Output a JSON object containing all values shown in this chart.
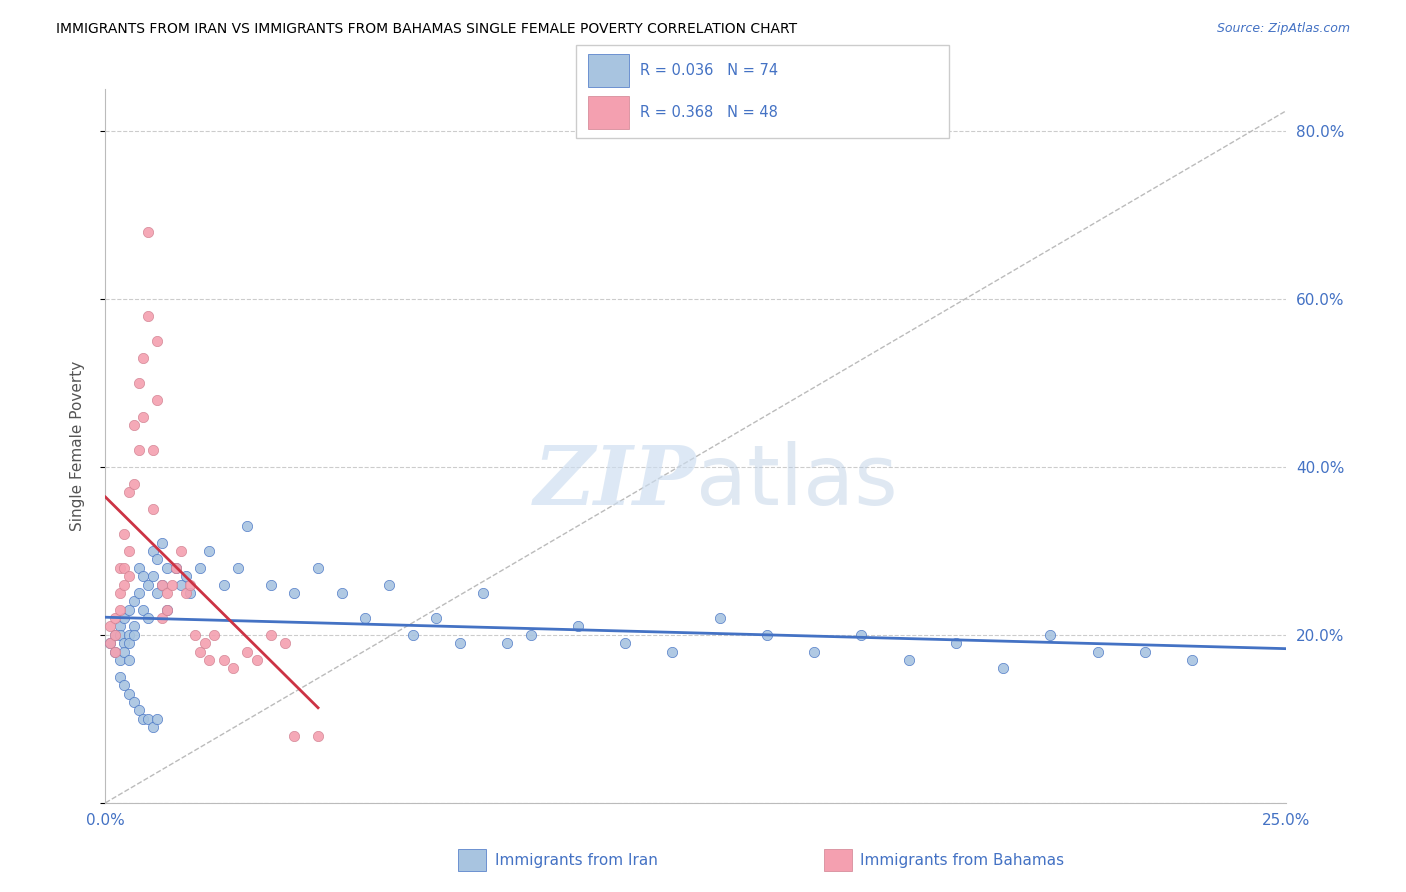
{
  "title": "IMMIGRANTS FROM IRAN VS IMMIGRANTS FROM BAHAMAS SINGLE FEMALE POVERTY CORRELATION CHART",
  "source": "Source: ZipAtlas.com",
  "ylabel": "Single Female Poverty",
  "legend_label1": "Immigrants from Iran",
  "legend_label2": "Immigrants from Bahamas",
  "R1": "0.036",
  "N1": "74",
  "R2": "0.368",
  "N2": "48",
  "xmin": 0.0,
  "xmax": 0.25,
  "ymin": 0.0,
  "ymax": 0.85,
  "yticks": [
    0.0,
    0.2,
    0.4,
    0.6,
    0.8
  ],
  "ytick_labels": [
    "",
    "20.0%",
    "40.0%",
    "60.0%",
    "80.0%"
  ],
  "xticks": [
    0.0,
    0.05,
    0.1,
    0.15,
    0.2,
    0.25
  ],
  "xtick_labels": [
    "0.0%",
    "",
    "",
    "",
    "",
    "25.0%"
  ],
  "color_iran": "#a8c4e0",
  "color_bahamas": "#f4a0b0",
  "color_trendline_iran": "#4472c4",
  "color_trendline_bahamas": "#cc3344",
  "color_grid": "#cccccc",
  "color_labels": "#4472c4",
  "iran_x": [
    0.001,
    0.002,
    0.002,
    0.003,
    0.003,
    0.003,
    0.004,
    0.004,
    0.004,
    0.005,
    0.005,
    0.005,
    0.005,
    0.006,
    0.006,
    0.006,
    0.007,
    0.007,
    0.008,
    0.008,
    0.009,
    0.009,
    0.01,
    0.01,
    0.011,
    0.011,
    0.012,
    0.012,
    0.013,
    0.013,
    0.015,
    0.016,
    0.017,
    0.018,
    0.02,
    0.022,
    0.025,
    0.028,
    0.03,
    0.035,
    0.04,
    0.045,
    0.05,
    0.055,
    0.06,
    0.065,
    0.07,
    0.075,
    0.08,
    0.085,
    0.09,
    0.1,
    0.11,
    0.12,
    0.13,
    0.14,
    0.15,
    0.16,
    0.17,
    0.18,
    0.19,
    0.2,
    0.21,
    0.22,
    0.23,
    0.003,
    0.004,
    0.005,
    0.006,
    0.007,
    0.008,
    0.009,
    0.01,
    0.011
  ],
  "iran_y": [
    0.19,
    0.2,
    0.18,
    0.21,
    0.2,
    0.17,
    0.22,
    0.19,
    0.18,
    0.23,
    0.2,
    0.19,
    0.17,
    0.24,
    0.21,
    0.2,
    0.28,
    0.25,
    0.27,
    0.23,
    0.26,
    0.22,
    0.3,
    0.27,
    0.29,
    0.25,
    0.31,
    0.26,
    0.28,
    0.23,
    0.28,
    0.26,
    0.27,
    0.25,
    0.28,
    0.3,
    0.26,
    0.28,
    0.33,
    0.26,
    0.25,
    0.28,
    0.25,
    0.22,
    0.26,
    0.2,
    0.22,
    0.19,
    0.25,
    0.19,
    0.2,
    0.21,
    0.19,
    0.18,
    0.22,
    0.2,
    0.18,
    0.2,
    0.17,
    0.19,
    0.16,
    0.2,
    0.18,
    0.18,
    0.17,
    0.15,
    0.14,
    0.13,
    0.12,
    0.11,
    0.1,
    0.1,
    0.09,
    0.1
  ],
  "bahamas_x": [
    0.001,
    0.001,
    0.002,
    0.002,
    0.002,
    0.003,
    0.003,
    0.003,
    0.004,
    0.004,
    0.004,
    0.005,
    0.005,
    0.005,
    0.006,
    0.006,
    0.007,
    0.007,
    0.008,
    0.008,
    0.009,
    0.009,
    0.01,
    0.01,
    0.011,
    0.011,
    0.012,
    0.012,
    0.013,
    0.013,
    0.014,
    0.015,
    0.016,
    0.017,
    0.018,
    0.019,
    0.02,
    0.021,
    0.022,
    0.023,
    0.025,
    0.027,
    0.03,
    0.032,
    0.035,
    0.038,
    0.04,
    0.045
  ],
  "bahamas_y": [
    0.21,
    0.19,
    0.22,
    0.2,
    0.18,
    0.28,
    0.25,
    0.23,
    0.32,
    0.28,
    0.26,
    0.37,
    0.3,
    0.27,
    0.45,
    0.38,
    0.5,
    0.42,
    0.53,
    0.46,
    0.68,
    0.58,
    0.42,
    0.35,
    0.55,
    0.48,
    0.26,
    0.22,
    0.25,
    0.23,
    0.26,
    0.28,
    0.3,
    0.25,
    0.26,
    0.2,
    0.18,
    0.19,
    0.17,
    0.2,
    0.17,
    0.16,
    0.18,
    0.17,
    0.2,
    0.19,
    0.08,
    0.08
  ]
}
